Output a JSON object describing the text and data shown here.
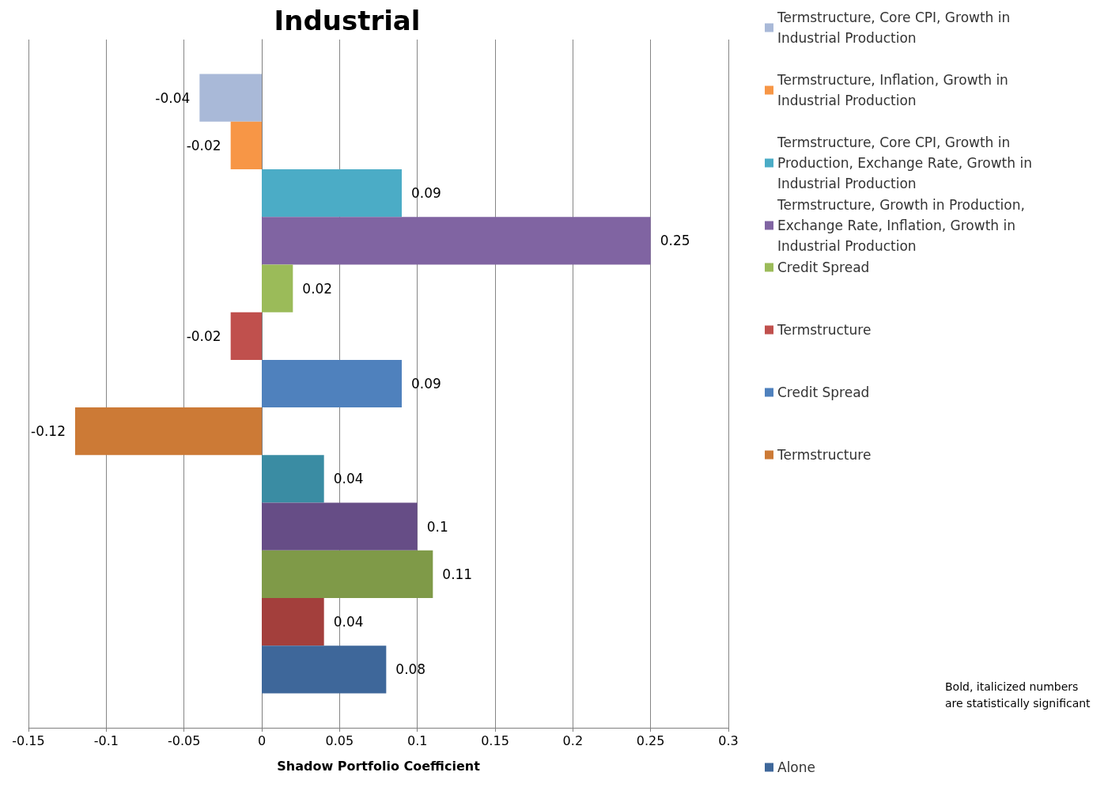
{
  "chart_data": {
    "type": "bar",
    "orientation": "horizontal",
    "title": "Industrial",
    "xlabel": "Shadow Portfolio Coefficient",
    "categories": [
      null
    ],
    "series": [
      {
        "name": "Termstructure, Core CPI, Growth in Industrial Production",
        "color": "#a9b9d8",
        "values": [
          -0.04
        ]
      },
      {
        "name": "Termstructure, Inflation, Growth in Industrial Production",
        "color": "#f79646",
        "values": [
          -0.02
        ]
      },
      {
        "name": "Termstructure, Core CPI, Growth in Production, Exchange Rate, Growth in Industrial Production",
        "color": "#4bacc6",
        "values": [
          0.09
        ]
      },
      {
        "name": "Termstructure, Growth in Production, Exchange Rate, Inflation, Growth in Industrial Production",
        "color": "#8064a2",
        "values": [
          0.25
        ]
      },
      {
        "name": "Credit Spread",
        "color": "#9bbb59",
        "values": [
          0.02
        ]
      },
      {
        "name": "Termstructure",
        "color": "#c0504d",
        "values": [
          -0.02
        ]
      },
      {
        "name": "Credit Spread",
        "color": "#4f81bd",
        "values": [
          0.09
        ]
      },
      {
        "name": "Termstructure",
        "color": "#cc7a36",
        "values": [
          -0.12
        ]
      },
      {
        "color": "#3a8ca3",
        "values": [
          0.04
        ]
      },
      {
        "color": "#664d86",
        "values": [
          0.1
        ]
      },
      {
        "color": "#7f9a48",
        "values": [
          0.11
        ]
      },
      {
        "color": "#a33f3c",
        "values": [
          0.04
        ]
      },
      {
        "name": "Alone",
        "color": "#3e679a",
        "values": [
          0.08
        ]
      }
    ],
    "xlim": [
      -0.15,
      0.3
    ],
    "xticks": [
      -0.15,
      -0.1,
      -0.05,
      0,
      0.05,
      0.1,
      0.15,
      0.2,
      0.25,
      0.3
    ],
    "grid": "x",
    "legend": "right",
    "data_labels": true,
    "annotations": [
      "Bold, italicized numbers are statistically significant"
    ]
  }
}
